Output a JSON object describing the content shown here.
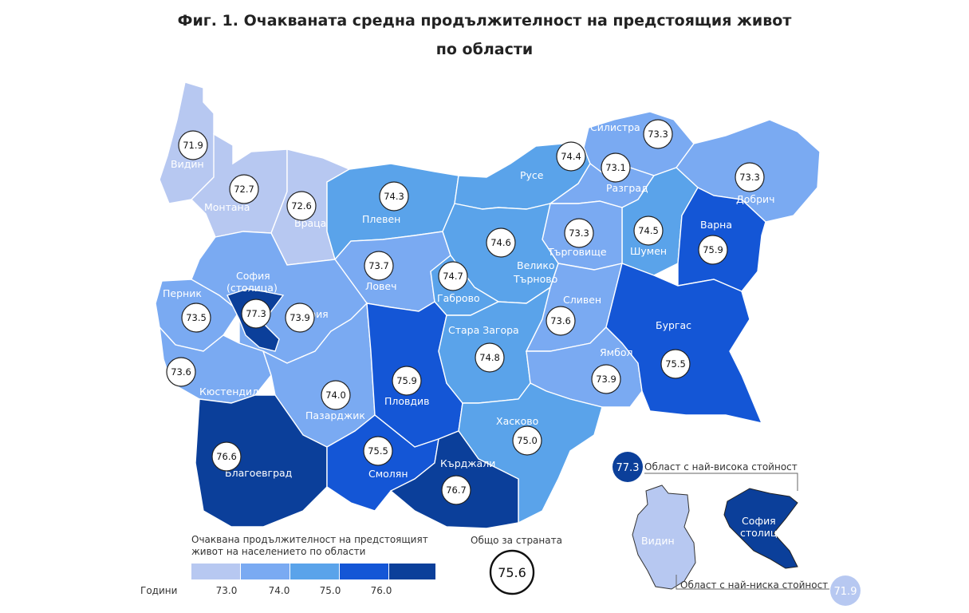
{
  "title": {
    "line1": "Фиг. 1. Очакваната средна продължителност на предстоящия живот",
    "line2": "по области"
  },
  "regions": [
    {
      "id": "vidin",
      "name": "Видин",
      "value": "71.9",
      "color": "#b7c8f1"
    },
    {
      "id": "montana",
      "name": "Монтана",
      "value": "72.7",
      "color": "#b7c8f1"
    },
    {
      "id": "vratsa",
      "name": "Враца",
      "value": "72.6",
      "color": "#b7c8f1"
    },
    {
      "id": "pleven",
      "name": "Плевен",
      "value": "74.3",
      "color": "#5aa3ea"
    },
    {
      "id": "ruse",
      "name": "Русе",
      "value": "74.4",
      "color": "#5aa3ea"
    },
    {
      "id": "silistra",
      "name": "Силистра",
      "value": "73.3",
      "color": "#7aaaf2"
    },
    {
      "id": "razgrad",
      "name": "Разград",
      "value": "73.1",
      "color": "#7aaaf2"
    },
    {
      "id": "dobrich",
      "name": "Добрич",
      "value": "73.3",
      "color": "#7aaaf2"
    },
    {
      "id": "turgovishte",
      "name": "Търговище",
      "value": "73.3",
      "color": "#7aaaf2"
    },
    {
      "id": "shumen",
      "name": "Шумен",
      "value": "74.5",
      "color": "#5aa3ea"
    },
    {
      "id": "varna",
      "name": "Варна",
      "value": "75.9",
      "color": "#1456d6"
    },
    {
      "id": "lovech",
      "name": "Ловеч",
      "value": "73.7",
      "color": "#7aaaf2"
    },
    {
      "id": "vtarnovo",
      "name": "Велико Търново",
      "value": "74.6",
      "color": "#5aa3ea"
    },
    {
      "id": "gabrovo",
      "name": "Габрово",
      "value": "74.7",
      "color": "#5aa3ea"
    },
    {
      "id": "sofia_capital",
      "name": "София (столица)",
      "value": "77.3",
      "color": "#0b3f9a"
    },
    {
      "id": "pernik",
      "name": "Перник",
      "value": "73.5",
      "color": "#7aaaf2"
    },
    {
      "id": "sofia",
      "name": "София",
      "value": "73.9",
      "color": "#7aaaf2"
    },
    {
      "id": "kyustendil",
      "name": "Кюстендил",
      "value": "73.6",
      "color": "#7aaaf2"
    },
    {
      "id": "pazardzhik",
      "name": "Пазарджик",
      "value": "74.0",
      "color": "#7aaaf2"
    },
    {
      "id": "plovdiv",
      "name": "Пловдив",
      "value": "75.9",
      "color": "#1456d6"
    },
    {
      "id": "stara_zagora",
      "name": "Стара Загора",
      "value": "74.8",
      "color": "#5aa3ea"
    },
    {
      "id": "sliven",
      "name": "Сливен",
      "value": "73.6",
      "color": "#7aaaf2"
    },
    {
      "id": "yambol",
      "name": "Ямбол",
      "value": "73.9",
      "color": "#7aaaf2"
    },
    {
      "id": "burgas",
      "name": "Бургас",
      "value": "75.5",
      "color": "#1456d6"
    },
    {
      "id": "haskovo",
      "name": "Хасково",
      "value": "75.0",
      "color": "#5aa3ea"
    },
    {
      "id": "smolyan",
      "name": "Смолян",
      "value": "75.5",
      "color": "#1456d6"
    },
    {
      "id": "kardzhali",
      "name": "Кърджали",
      "value": "76.7",
      "color": "#0b3f9a"
    },
    {
      "id": "blagoevgrad",
      "name": "Благоевград",
      "value": "76.6",
      "color": "#0b3f9a"
    }
  ],
  "legend": {
    "title_line1": "Очаквана продължителност на предстоящият",
    "title_line2": "живот на населението по области",
    "unit_label": "Години",
    "colors": [
      "#b7c8f1",
      "#7aaaf2",
      "#5aa3ea",
      "#1456d6",
      "#0b3f9a"
    ],
    "breaks": [
      "73.0",
      "74.0",
      "75.0",
      "76.0"
    ]
  },
  "national": {
    "label": "Общо за страната",
    "value": "75.6"
  },
  "highlight": {
    "max_value": "77.3",
    "max_label": "Област с най-висока стойност",
    "max_region_line1": "София",
    "max_region_line2": "столица",
    "min_value": "71.9",
    "min_label": "Област с най-ниска стойност",
    "min_region": "Видин"
  }
}
